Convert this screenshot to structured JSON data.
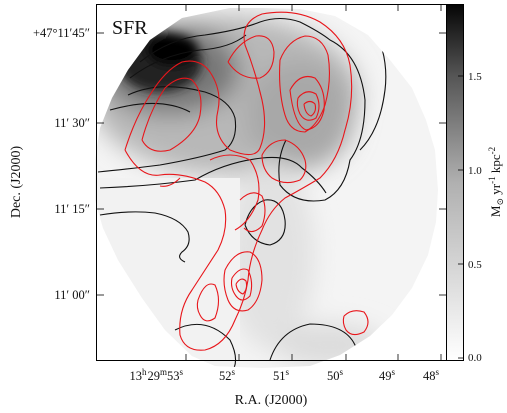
{
  "chart_data": {
    "type": "heatmap",
    "title": "SFR",
    "xlabel": "R.A. (J2000)",
    "ylabel": "Dec. (J2000)",
    "x_ticks": [
      {
        "h": "13",
        "m": "29",
        "s": "53",
        "full": true
      },
      {
        "s": "52"
      },
      {
        "s": "51"
      },
      {
        "s": "50"
      },
      {
        "s": "49"
      },
      {
        "s": "48"
      }
    ],
    "x_tick_units": {
      "h": "h",
      "m": "m",
      "s": "s"
    },
    "y_ticks": [
      "+47°11′45″",
      "11′ 30″",
      "11′ 15″",
      "11′ 00″"
    ],
    "colorbar": {
      "label_main": "M",
      "label_sun": "⊙",
      "label_rest": " yr",
      "label_exp1": "-1",
      "label_unit2": " kpc",
      "label_exp2": "-2",
      "ticks": [
        "1.5",
        "1.0",
        "0.5",
        "0.0"
      ],
      "tick_values": [
        1.5,
        1.0,
        0.5,
        0.0
      ],
      "range": [
        0.0,
        1.9
      ],
      "colormap": "gray_r"
    },
    "colors": {
      "contour_red": "#e8161b",
      "contour_black": "#111111",
      "frame": "#000000"
    }
  }
}
